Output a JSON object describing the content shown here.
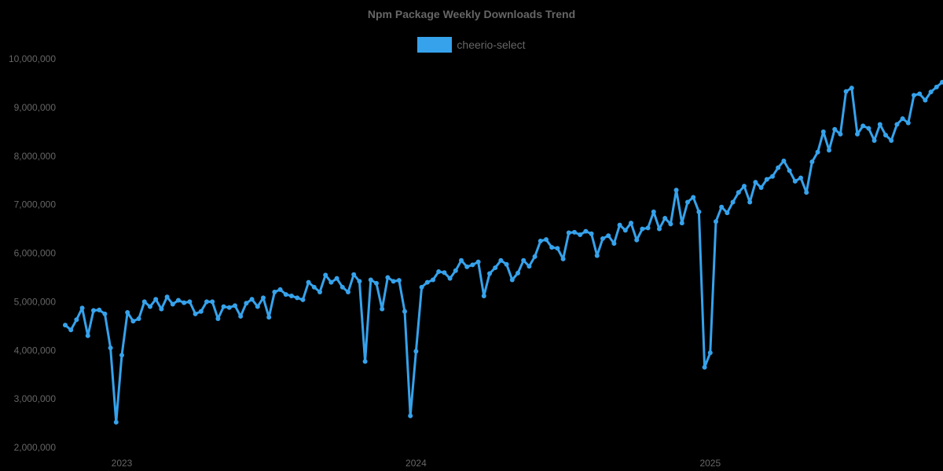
{
  "chart_data": {
    "type": "line",
    "title": "Npm Package Weekly Downloads Trend",
    "xlabel": "",
    "ylabel": "",
    "ylim": [
      2000000,
      10000000
    ],
    "y_ticks": [
      "2,000,000",
      "3,000,000",
      "4,000,000",
      "5,000,000",
      "6,000,000",
      "7,000,000",
      "8,000,000",
      "9,000,000",
      "10,000,000"
    ],
    "x_ticks": [
      {
        "label": "2023",
        "week_index": 10
      },
      {
        "label": "2024",
        "week_index": 62
      },
      {
        "label": "2025",
        "week_index": 114
      }
    ],
    "grid": false,
    "legend_position": "top",
    "series": [
      {
        "name": "cheerio-select",
        "color": "#36a2eb",
        "values": [
          4520000,
          4420000,
          4630000,
          4870000,
          4300000,
          4820000,
          4830000,
          4750000,
          4050000,
          2520000,
          3900000,
          4780000,
          4600000,
          4650000,
          5000000,
          4900000,
          5050000,
          4850000,
          5100000,
          4950000,
          5030000,
          4980000,
          5000000,
          4750000,
          4800000,
          5000000,
          5000000,
          4650000,
          4900000,
          4880000,
          4920000,
          4700000,
          4970000,
          5050000,
          4900000,
          5080000,
          4680000,
          5200000,
          5250000,
          5150000,
          5120000,
          5080000,
          5040000,
          5400000,
          5300000,
          5200000,
          5550000,
          5400000,
          5480000,
          5300000,
          5200000,
          5560000,
          5420000,
          3770000,
          5450000,
          5380000,
          4850000,
          5500000,
          5420000,
          5440000,
          4800000,
          2650000,
          3980000,
          5300000,
          5400000,
          5450000,
          5620000,
          5600000,
          5480000,
          5640000,
          5850000,
          5720000,
          5760000,
          5820000,
          5120000,
          5580000,
          5700000,
          5850000,
          5770000,
          5450000,
          5590000,
          5850000,
          5730000,
          5930000,
          6250000,
          6280000,
          6120000,
          6100000,
          5880000,
          6420000,
          6430000,
          6380000,
          6450000,
          6400000,
          5950000,
          6300000,
          6360000,
          6200000,
          6580000,
          6470000,
          6620000,
          6270000,
          6500000,
          6520000,
          6850000,
          6500000,
          6720000,
          6600000,
          7300000,
          6620000,
          7050000,
          7150000,
          6850000,
          3650000,
          3950000,
          6650000,
          6950000,
          6830000,
          7050000,
          7250000,
          7380000,
          7050000,
          7460000,
          7350000,
          7520000,
          7580000,
          7760000,
          7900000,
          7700000,
          7480000,
          7550000,
          7250000,
          7880000,
          8080000,
          8500000,
          8120000,
          8550000,
          8450000,
          9330000,
          9400000,
          8450000,
          8620000,
          8570000,
          8320000,
          8650000,
          8430000,
          8320000,
          8650000,
          8770000,
          8680000,
          9250000,
          9280000,
          9150000,
          9320000,
          9420000,
          9520000
        ]
      }
    ]
  },
  "legend": {
    "label": "cheerio-select",
    "color": "#36a2eb"
  }
}
